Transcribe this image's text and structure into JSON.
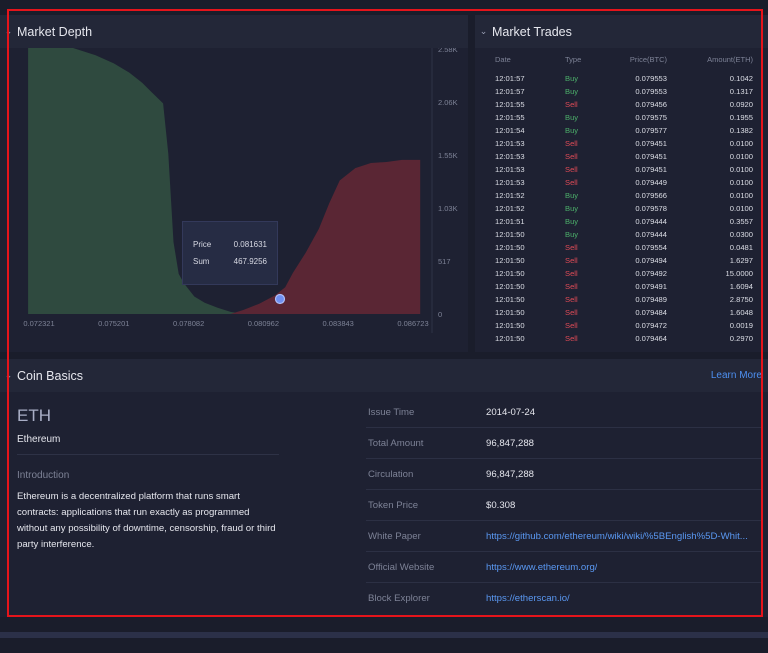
{
  "depth": {
    "title": "Market Depth",
    "y_ticks": [
      "2.58K",
      "2.06K",
      "1.55K",
      "1.03K",
      "517",
      "0"
    ],
    "x_ticks": [
      "0.072321",
      "0.075201",
      "0.078082",
      "0.080962",
      "0.083843",
      "0.086723"
    ],
    "tooltip": {
      "price_label": "Price",
      "price_value": "0.081631",
      "sum_label": "Sum",
      "sum_value": "467.9256"
    },
    "colors": {
      "bid": "#2f4a3f",
      "ask": "#5a2634",
      "marker": "#6f8ff0"
    }
  },
  "chart_data": {
    "type": "area",
    "x_ticks": [
      0.072321,
      0.075201,
      0.078082,
      0.080962,
      0.083843,
      0.086723
    ],
    "ylim": [
      0,
      2580
    ],
    "series": [
      {
        "side": "bid",
        "x": [
          0.0719,
          0.0735,
          0.0745,
          0.0752,
          0.0758,
          0.0763,
          0.0767,
          0.0771,
          0.0773,
          0.0775,
          0.0777,
          0.0779,
          0.0783,
          0.0787,
          0.0792,
          0.0797,
          0.0802
        ],
        "y": [
          2600,
          2600,
          2520,
          2440,
          2350,
          2250,
          2150,
          2050,
          1560,
          700,
          390,
          300,
          170,
          110,
          60,
          20,
          0
        ]
      },
      {
        "side": "ask",
        "x": [
          0.0797,
          0.0802,
          0.0808,
          0.0814,
          0.0818,
          0.0821,
          0.0826,
          0.0831,
          0.0835,
          0.0839,
          0.0845,
          0.0851,
          0.0857,
          0.0863,
          0.087
        ],
        "y": [
          0,
          40,
          100,
          180,
          260,
          400,
          600,
          830,
          1080,
          1300,
          1420,
          1470,
          1480,
          1500,
          1500
        ]
      }
    ]
  },
  "trades": {
    "title": "Market Trades",
    "headers": [
      "Date",
      "Type",
      "Price(BTC)",
      "Amount(ETH)"
    ],
    "rows": [
      [
        "12:01:57",
        "Buy",
        "0.079553",
        "0.1042"
      ],
      [
        "12:01:57",
        "Buy",
        "0.079553",
        "0.1317"
      ],
      [
        "12:01:55",
        "Sell",
        "0.079456",
        "0.0920"
      ],
      [
        "12:01:55",
        "Buy",
        "0.079575",
        "0.1955"
      ],
      [
        "12:01:54",
        "Buy",
        "0.079577",
        "0.1382"
      ],
      [
        "12:01:53",
        "Sell",
        "0.079451",
        "0.0100"
      ],
      [
        "12:01:53",
        "Sell",
        "0.079451",
        "0.0100"
      ],
      [
        "12:01:53",
        "Sell",
        "0.079451",
        "0.0100"
      ],
      [
        "12:01:53",
        "Sell",
        "0.079449",
        "0.0100"
      ],
      [
        "12:01:52",
        "Buy",
        "0.079566",
        "0.0100"
      ],
      [
        "12:01:52",
        "Buy",
        "0.079578",
        "0.0100"
      ],
      [
        "12:01:51",
        "Buy",
        "0.079444",
        "0.3557"
      ],
      [
        "12:01:50",
        "Buy",
        "0.079444",
        "0.0300"
      ],
      [
        "12:01:50",
        "Sell",
        "0.079554",
        "0.0481"
      ],
      [
        "12:01:50",
        "Sell",
        "0.079494",
        "1.6297"
      ],
      [
        "12:01:50",
        "Sell",
        "0.079492",
        "15.0000"
      ],
      [
        "12:01:50",
        "Sell",
        "0.079491",
        "1.6094"
      ],
      [
        "12:01:50",
        "Sell",
        "0.079489",
        "2.8750"
      ],
      [
        "12:01:50",
        "Sell",
        "0.079484",
        "1.6048"
      ],
      [
        "12:01:50",
        "Sell",
        "0.079472",
        "0.0019"
      ],
      [
        "12:01:50",
        "Sell",
        "0.079464",
        "0.2970"
      ]
    ]
  },
  "coin": {
    "title": "Coin Basics",
    "learn_more": "Learn More",
    "symbol": "ETH",
    "name": "Ethereum",
    "intro_label": "Introduction",
    "intro_text": "Ethereum is a decentralized platform that runs smart contracts: applications that run exactly as programmed without any possibility of downtime, censorship, fraud or third party interference.",
    "info": [
      {
        "label": "Issue Time",
        "value": "2014-07-24",
        "link": false
      },
      {
        "label": "Total Amount",
        "value": "96,847,288",
        "link": false
      },
      {
        "label": "Circulation",
        "value": "96,847,288",
        "link": false
      },
      {
        "label": "Token Price",
        "value": "$0.308",
        "link": false
      },
      {
        "label": "White Paper",
        "value": "https://github.com/ethereum/wiki/wiki/%5BEnglish%5D-Whit...",
        "link": true
      },
      {
        "label": "Official Website",
        "value": "https://www.ethereum.org/",
        "link": true
      },
      {
        "label": "Block Explorer",
        "value": "https://etherscan.io/",
        "link": true
      }
    ]
  }
}
